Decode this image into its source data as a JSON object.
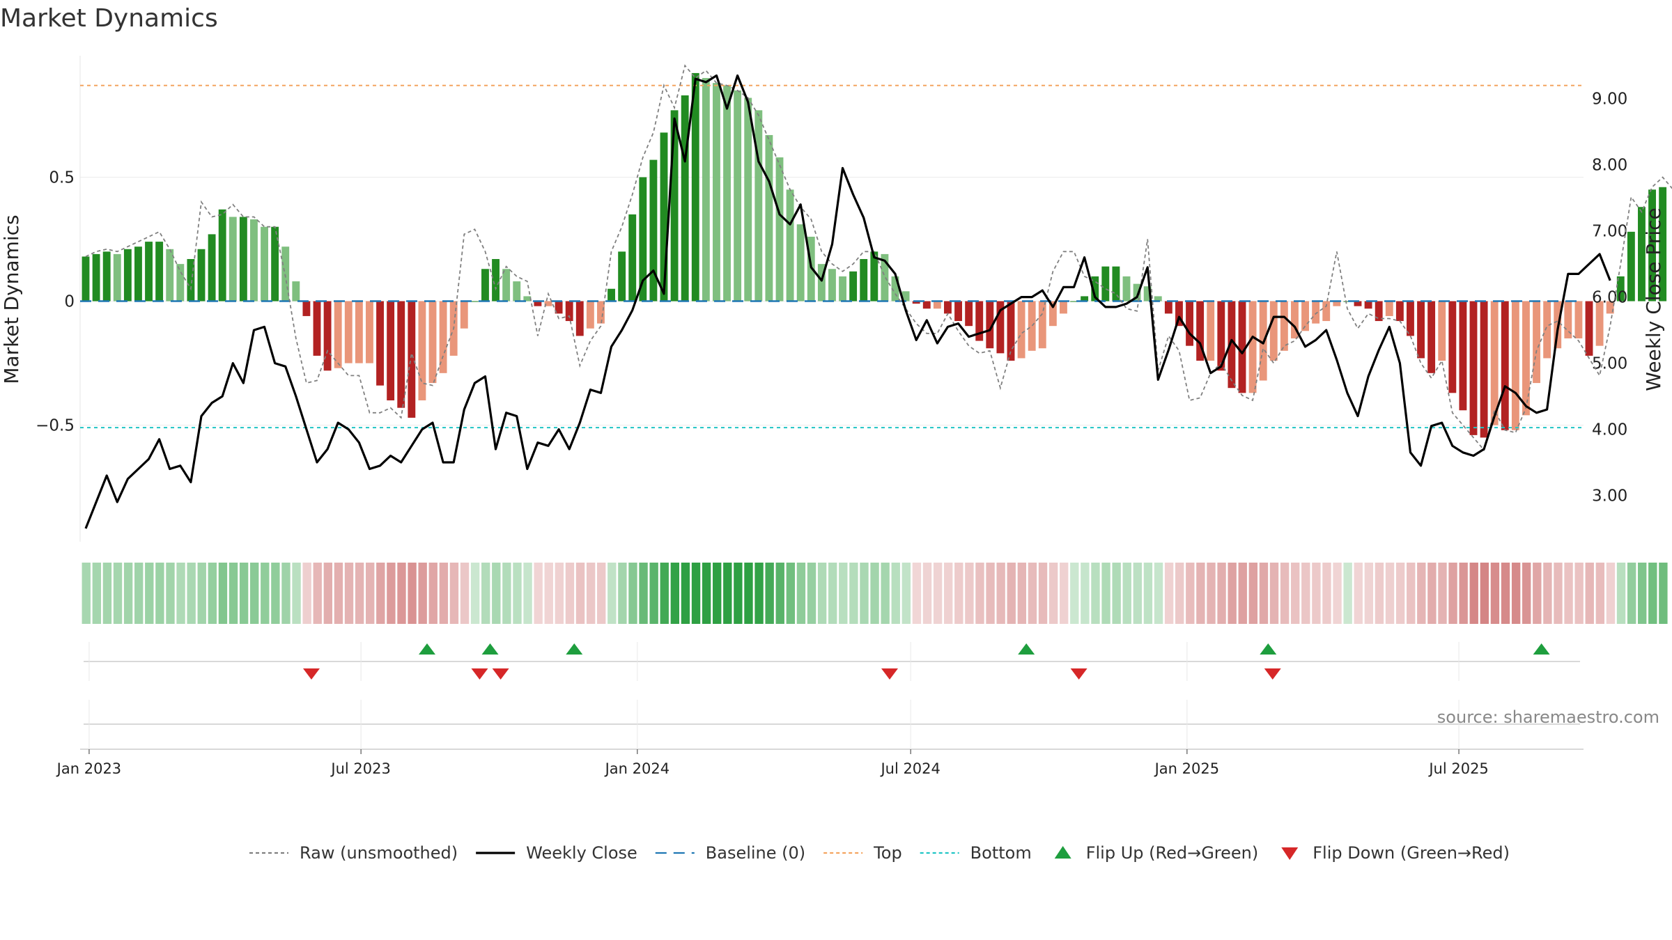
{
  "title": "Market Dynamics",
  "source": "source: sharemaestro.com",
  "colors": {
    "strong_green": "#228b22",
    "light_green": "#7fbf7f",
    "strong_red": "#b22222",
    "light_red": "#e9967a",
    "top_line": "#f4a460",
    "bottom_line": "#20c5c5",
    "baseline": "#1f77b4",
    "raw": "#808080",
    "close": "#000000",
    "flip_up": "#1e9e3e",
    "flip_down": "#d62728"
  },
  "chart_data": {
    "type": "bar",
    "title": "Market Dynamics",
    "ylabel_left": "Market Dynamics",
    "ylabel_right": "Weekly Close Price",
    "ylim_left": [
      -0.97,
      0.99
    ],
    "ylim_right": [
      2.3,
      9.65
    ],
    "yticks_left": [
      {
        "value": 0.5,
        "label": "0.5"
      },
      {
        "value": 0,
        "label": "0"
      },
      {
        "value": -0.5,
        "label": "−0.5"
      }
    ],
    "yticks_right": [
      {
        "value": 9.0,
        "label": "9.00"
      },
      {
        "value": 8.0,
        "label": "8.00"
      },
      {
        "value": 7.0,
        "label": "7.00"
      },
      {
        "value": 6.0,
        "label": "6.00"
      },
      {
        "value": 5.0,
        "label": "5.00"
      },
      {
        "value": 4.0,
        "label": "4.00"
      },
      {
        "value": 3.0,
        "label": "3.00"
      }
    ],
    "x_range": [
      "2022-12-26",
      "2025-09-22"
    ],
    "xticks": [
      {
        "date": "2023-01-01",
        "label": "Jan 2023"
      },
      {
        "date": "2023-07-01",
        "label": "Jul 2023"
      },
      {
        "date": "2024-01-01",
        "label": "Jan 2024"
      },
      {
        "date": "2024-07-01",
        "label": "Jul 2024"
      },
      {
        "date": "2025-01-01",
        "label": "Jan 2025"
      },
      {
        "date": "2025-07-01",
        "label": "Jul 2025"
      }
    ],
    "start_week": "2022-12-26",
    "top_level": 0.87,
    "bottom_level": -0.51,
    "baseline_level": 0,
    "dynamics": [
      0.18,
      0.19,
      0.2,
      0.19,
      0.21,
      0.22,
      0.24,
      0.24,
      0.21,
      0.15,
      0.17,
      0.21,
      0.27,
      0.37,
      0.34,
      0.34,
      0.33,
      0.3,
      0.3,
      0.22,
      0.08,
      -0.06,
      -0.22,
      -0.28,
      -0.27,
      -0.25,
      -0.25,
      -0.25,
      -0.34,
      -0.4,
      -0.43,
      -0.47,
      -0.4,
      -0.33,
      -0.29,
      -0.22,
      -0.11,
      0,
      0.13,
      0.17,
      0.13,
      0.08,
      0.02,
      -0.02,
      -0.02,
      -0.05,
      -0.08,
      -0.14,
      -0.11,
      -0.09,
      0.05,
      0.2,
      0.35,
      0.5,
      0.57,
      0.68,
      0.77,
      0.83,
      0.92,
      0.9,
      0.88,
      0.87,
      0.85,
      0.82,
      0.77,
      0.67,
      0.58,
      0.45,
      0.31,
      0.26,
      0.15,
      0.13,
      0.1,
      0.12,
      0.17,
      0.2,
      0.19,
      0.1,
      0.04,
      -0.01,
      -0.03,
      -0.03,
      -0.05,
      -0.08,
      -0.1,
      -0.16,
      -0.19,
      -0.21,
      -0.24,
      -0.23,
      -0.2,
      -0.19,
      -0.1,
      -0.05,
      0,
      0.02,
      0.1,
      0.14,
      0.14,
      0.1,
      0.07,
      0.06,
      0.02,
      -0.05,
      -0.1,
      -0.18,
      -0.24,
      -0.24,
      -0.28,
      -0.35,
      -0.37,
      -0.37,
      -0.32,
      -0.24,
      -0.2,
      -0.15,
      -0.12,
      -0.09,
      -0.08,
      -0.02,
      0,
      -0.02,
      -0.03,
      -0.08,
      -0.06,
      -0.08,
      -0.14,
      -0.23,
      -0.29,
      -0.24,
      -0.37,
      -0.44,
      -0.54,
      -0.55,
      -0.5,
      -0.52,
      -0.52,
      -0.46,
      -0.33,
      -0.23,
      -0.19,
      -0.15,
      -0.15,
      -0.22,
      -0.18,
      -0.05,
      0.1,
      0.28,
      0.38,
      0.45,
      0.46
    ],
    "raw": [
      0.18,
      0.2,
      0.21,
      0.2,
      0.22,
      0.24,
      0.26,
      0.28,
      0.21,
      0.12,
      0.05,
      0.4,
      0.34,
      0.35,
      0.39,
      0.34,
      0.34,
      0.3,
      0.3,
      0.1,
      -0.15,
      -0.33,
      -0.32,
      -0.2,
      -0.25,
      -0.3,
      -0.3,
      -0.45,
      -0.45,
      -0.43,
      -0.47,
      -0.21,
      -0.33,
      -0.34,
      -0.22,
      -0.11,
      0.27,
      0.29,
      0.2,
      0.05,
      0.14,
      0.1,
      0.08,
      -0.14,
      0.03,
      -0.07,
      -0.06,
      -0.26,
      -0.16,
      -0.1,
      0.2,
      0.3,
      0.43,
      0.58,
      0.68,
      0.87,
      0.78,
      0.95,
      0.9,
      0.93,
      0.88,
      0.87,
      0.85,
      0.82,
      0.75,
      0.65,
      0.55,
      0.45,
      0.38,
      0.33,
      0.2,
      0.15,
      0.12,
      0.15,
      0.2,
      0.2,
      0.1,
      0.03,
      -0.03,
      -0.09,
      -0.13,
      -0.13,
      -0.05,
      -0.12,
      -0.18,
      -0.21,
      -0.2,
      -0.35,
      -0.2,
      -0.13,
      -0.1,
      -0.05,
      0.12,
      0.2,
      0.2,
      0.1,
      0.08,
      0.05,
      0.03,
      -0.03,
      -0.04,
      0.25,
      -0.28,
      -0.14,
      -0.2,
      -0.4,
      -0.39,
      -0.29,
      -0.25,
      -0.32,
      -0.38,
      -0.4,
      -0.19,
      -0.25,
      -0.18,
      -0.16,
      -0.1,
      -0.05,
      -0.02,
      0.2,
      -0.03,
      -0.11,
      -0.05,
      -0.07,
      -0.07,
      -0.08,
      -0.14,
      -0.25,
      -0.31,
      -0.24,
      -0.45,
      -0.5,
      -0.55,
      -0.6,
      -0.44,
      -0.52,
      -0.53,
      -0.43,
      -0.2,
      -0.1,
      -0.08,
      -0.12,
      -0.16,
      -0.23,
      -0.3,
      -0.1,
      0.15,
      0.42,
      0.36,
      0.46,
      0.5,
      0.45
    ],
    "weekly_close": [
      2.5,
      2.9,
      3.3,
      2.9,
      3.25,
      3.4,
      3.55,
      3.85,
      3.4,
      3.45,
      3.2,
      4.2,
      4.4,
      4.5,
      5.0,
      4.7,
      5.5,
      5.55,
      5.0,
      4.95,
      4.5,
      4.0,
      3.5,
      3.7,
      4.1,
      4.0,
      3.8,
      3.4,
      3.45,
      3.6,
      3.5,
      3.75,
      4.0,
      4.1,
      3.5,
      3.5,
      4.3,
      4.7,
      4.8,
      3.7,
      4.25,
      4.2,
      3.4,
      3.8,
      3.75,
      4.0,
      3.7,
      4.1,
      4.6,
      4.55,
      5.25,
      5.5,
      5.8,
      6.25,
      6.4,
      6.05,
      8.7,
      8.05,
      9.3,
      9.25,
      9.35,
      8.85,
      9.35,
      8.95,
      8.05,
      7.75,
      7.25,
      7.1,
      7.4,
      6.45,
      6.25,
      6.8,
      7.95,
      7.55,
      7.2,
      6.6,
      6.55,
      6.35,
      5.8,
      5.35,
      5.65,
      5.3,
      5.55,
      5.6,
      5.4,
      5.45,
      5.5,
      5.8,
      5.9,
      6.0,
      6.0,
      6.1,
      5.85,
      6.15,
      6.15,
      6.6,
      6.0,
      5.85,
      5.85,
      5.9,
      6.0,
      6.45,
      4.75,
      5.2,
      5.7,
      5.45,
      5.3,
      4.85,
      4.95,
      5.35,
      5.15,
      5.4,
      5.3,
      5.7,
      5.7,
      5.55,
      5.25,
      5.35,
      5.5,
      5.05,
      4.55,
      4.2,
      4.8,
      5.2,
      5.55,
      5.0,
      3.65,
      3.45,
      4.05,
      4.1,
      3.75,
      3.65,
      3.6,
      3.7,
      4.2,
      4.65,
      4.55,
      4.35,
      4.25,
      4.3,
      5.5,
      6.35,
      6.35,
      6.5,
      6.65,
      6.25
    ],
    "flip_up_dates": [
      "2023-08-14",
      "2023-09-25",
      "2023-11-20",
      "2024-09-16",
      "2025-02-24",
      "2025-08-25"
    ],
    "flip_down_dates": [
      "2023-05-29",
      "2023-09-18",
      "2023-10-02",
      "2024-06-17",
      "2024-10-21",
      "2025-02-27"
    ],
    "legend": [
      {
        "label": "Raw (unsmoothed)",
        "kind": "dotted-line",
        "color": "#808080"
      },
      {
        "label": "Weekly Close",
        "kind": "solid-line",
        "color": "#000000"
      },
      {
        "label": "Baseline (0)",
        "kind": "dashed-line",
        "color": "#1f77b4"
      },
      {
        "label": "Top",
        "kind": "dotted-line",
        "color": "#f4a460"
      },
      {
        "label": "Bottom",
        "kind": "dotted-line",
        "color": "#20c5c5"
      },
      {
        "label": "Flip Up (Red→Green)",
        "kind": "up-triangle",
        "color": "#1e9e3e"
      },
      {
        "label": "Flip Down (Green→Red)",
        "kind": "down-triangle",
        "color": "#d62728"
      }
    ]
  }
}
